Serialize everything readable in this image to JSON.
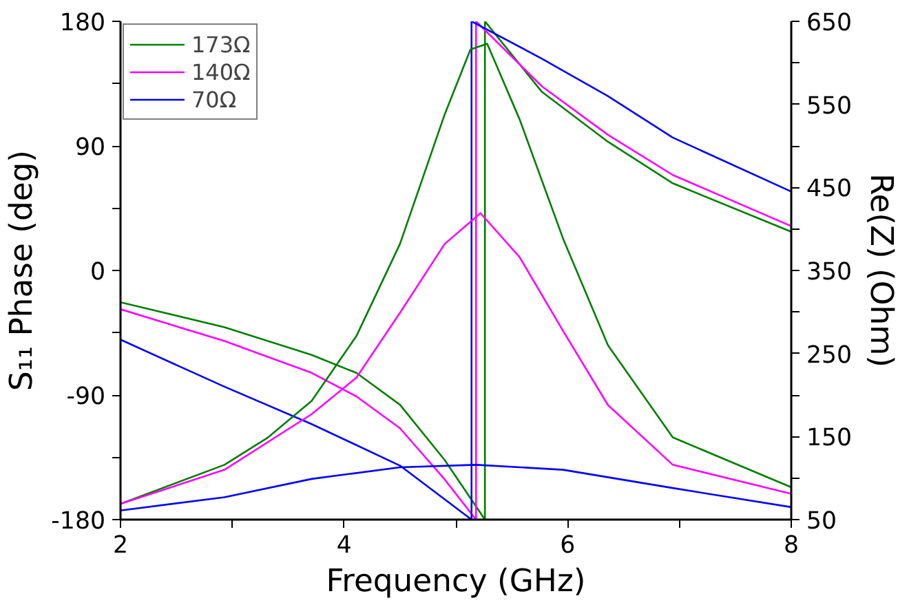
{
  "chart_data": {
    "type": "line",
    "xlabel": "Frequency (GHz)",
    "ylabel": "S₁₁ Phase (deg)",
    "y2label": "Re(Z) (Ohm)",
    "xlim": [
      2,
      8
    ],
    "xticks": [
      2,
      {
        "value": 3,
        "label": null
      },
      4,
      {
        "value": 5,
        "label": null
      },
      6,
      {
        "value": 7,
        "label": null
      },
      8
    ],
    "ylim": [
      -180,
      180
    ],
    "yticks": [
      -180,
      {
        "value": -135,
        "label": null
      },
      -90,
      {
        "value": -45,
        "label": null
      },
      0,
      {
        "value": 45,
        "label": null
      },
      90,
      {
        "value": 135,
        "label": null
      },
      180
    ],
    "y2lim": [
      50,
      650
    ],
    "y2ticks": [
      50,
      {
        "value": 100,
        "label": null
      },
      150,
      {
        "value": 200,
        "label": null
      },
      250,
      {
        "value": 300,
        "label": null
      },
      350,
      {
        "value": 400,
        "label": null
      },
      450,
      {
        "value": 500,
        "label": null
      },
      550,
      {
        "value": 600,
        "label": null
      },
      650
    ],
    "grid": false,
    "legend": "top left",
    "marker": "none",
    "line_style": "solid",
    "series": [
      {
        "name": "173Ω",
        "color": "#007f00",
        "x": [
          2,
          2.93,
          3.71,
          4.11,
          4.5,
          4.9,
          5.26,
          5.26,
          5.77,
          6.36,
          6.94,
          8
        ],
        "values": [
          -23,
          -41,
          -61,
          -74,
          -97,
          -137,
          -180,
          180,
          129,
          93,
          63,
          28
        ]
      },
      {
        "name": "140Ω",
        "color": "#ff00ff",
        "x": [
          2,
          2.93,
          3.71,
          4.11,
          4.5,
          4.9,
          5.18,
          5.18,
          5.77,
          6.36,
          6.94,
          8
        ],
        "values": [
          -28,
          -51,
          -74,
          -91,
          -114,
          -151,
          -180,
          180,
          133,
          98,
          69,
          32
        ]
      },
      {
        "name": "70Ω",
        "color": "#0000ff",
        "x": [
          2,
          2.93,
          3.71,
          4.5,
          5.14,
          5.14,
          5.77,
          6.36,
          6.94,
          8
        ],
        "values": [
          -50,
          -84,
          -111,
          -141,
          -180,
          180,
          153,
          126,
          96,
          57
        ]
      },
      {
        "color": "#007f00",
        "axis": "y2",
        "x": [
          2,
          2.93,
          3.32,
          3.71,
          4.11,
          4.5,
          4.9,
          5.13,
          5.28,
          5.57,
          5.96,
          6.36,
          6.94,
          8
        ],
        "values": [
          69,
          116,
          149,
          193,
          271,
          382,
          538,
          616,
          623,
          532,
          388,
          260,
          149,
          89
        ]
      },
      {
        "color": "#ff00ff",
        "axis": "y2",
        "x": [
          2,
          2.93,
          3.71,
          4.11,
          4.5,
          4.9,
          5.22,
          5.57,
          5.96,
          6.36,
          6.94,
          8
        ],
        "values": [
          69,
          110,
          177,
          221,
          299,
          382,
          419,
          366,
          277,
          188,
          116,
          81
        ]
      },
      {
        "color": "#0000ff",
        "axis": "y2",
        "x": [
          2,
          2.93,
          3.71,
          4.5,
          5.18,
          5.96,
          6.94,
          8
        ],
        "values": [
          61,
          77,
          99,
          113,
          116,
          110,
          88,
          65
        ]
      }
    ]
  }
}
